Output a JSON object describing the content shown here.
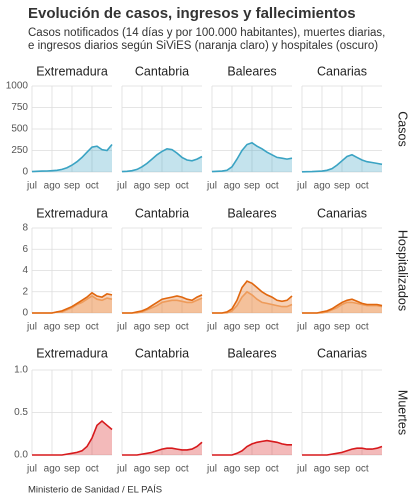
{
  "title": "Evolución de casos, ingresos y fallecimientos",
  "subtitle": [
    "Casos notificados (14 días y por 100.000 habitantes), muertes diarias,",
    "e ingresos diarios según SiViES (naranja claro) y hospitales (oscuro)"
  ],
  "source": "Ministerio de Sanidad / EL PAÍS",
  "chart_data": [
    {
      "type": "area",
      "row_label": "Casos",
      "ylim": [
        0,
        1000
      ],
      "yticks": [
        0,
        250,
        500,
        750,
        1000
      ],
      "grid": true,
      "categories": [
        "jul",
        null,
        null,
        null,
        "ago",
        null,
        null,
        null,
        "sep",
        null,
        null,
        null,
        "oct",
        null,
        null,
        null,
        null
      ],
      "panels": [
        {
          "title": "Extremadura",
          "series": [
            {
              "color": "#3aa3c3",
              "values": [
                5,
                8,
                10,
                12,
                15,
                20,
                30,
                50,
                80,
                120,
                170,
                230,
                290,
                300,
                260,
                250,
                320
              ]
            }
          ]
        },
        {
          "title": "Cantabria",
          "series": [
            {
              "color": "#3aa3c3",
              "values": [
                5,
                8,
                15,
                30,
                60,
                100,
                150,
                200,
                240,
                270,
                260,
                220,
                170,
                140,
                130,
                150,
                180
              ]
            }
          ]
        },
        {
          "title": "Baleares",
          "series": [
            {
              "color": "#3aa3c3",
              "values": [
                5,
                8,
                10,
                20,
                60,
                150,
                250,
                320,
                340,
                300,
                270,
                230,
                200,
                170,
                160,
                150,
                160
              ]
            }
          ]
        },
        {
          "title": "Canarias",
          "series": [
            {
              "color": "#3aa3c3",
              "values": [
                2,
                3,
                5,
                8,
                10,
                20,
                40,
                80,
                130,
                180,
                200,
                170,
                140,
                120,
                110,
                100,
                90
              ]
            }
          ]
        }
      ]
    },
    {
      "type": "area",
      "row_label": "Hospitalizados",
      "ylim": [
        0,
        8
      ],
      "yticks": [
        0,
        2,
        4,
        6,
        8
      ],
      "grid": true,
      "categories": [
        "jul",
        null,
        null,
        null,
        "ago",
        null,
        null,
        null,
        "sep",
        null,
        null,
        null,
        "oct",
        null,
        null,
        null,
        null
      ],
      "panels": [
        {
          "title": "Extremadura",
          "series": [
            {
              "color": "#f4b27a",
              "values": [
                0,
                0,
                0,
                0,
                0,
                0.1,
                0.1,
                0.3,
                0.5,
                0.8,
                1,
                1.3,
                1.6,
                1.3,
                1.2,
                1.4,
                1.3
              ]
            },
            {
              "color": "#e0670f",
              "values": [
                0,
                0,
                0,
                0,
                0,
                0.1,
                0.2,
                0.4,
                0.6,
                0.9,
                1.2,
                1.5,
                1.9,
                1.6,
                1.5,
                1.8,
                1.7
              ]
            }
          ]
        },
        {
          "title": "Cantabria",
          "series": [
            {
              "color": "#f4b27a",
              "values": [
                0,
                0,
                0,
                0,
                0.1,
                0.3,
                0.5,
                0.7,
                1,
                1.1,
                1.2,
                1.2,
                1.1,
                1,
                1,
                1.2,
                1.4
              ]
            },
            {
              "color": "#e0670f",
              "values": [
                0,
                0,
                0,
                0.1,
                0.2,
                0.4,
                0.7,
                1,
                1.3,
                1.4,
                1.5,
                1.6,
                1.5,
                1.3,
                1.2,
                1.5,
                1.7
              ]
            }
          ]
        },
        {
          "title": "Baleares",
          "series": [
            {
              "color": "#f4b27a",
              "values": [
                0,
                0,
                0,
                0,
                0.2,
                0.7,
                1.5,
                2,
                1.7,
                1.3,
                1,
                0.9,
                0.8,
                0.7,
                0.6,
                0.6,
                0.8
              ]
            },
            {
              "color": "#e0670f",
              "values": [
                0,
                0,
                0,
                0.1,
                0.4,
                1.2,
                2.4,
                3,
                2.8,
                2.4,
                2,
                1.7,
                1.5,
                1.2,
                1.1,
                1.2,
                1.6
              ]
            }
          ]
        },
        {
          "title": "Canarias",
          "series": [
            {
              "color": "#f4b27a",
              "values": [
                0,
                0,
                0,
                0,
                0,
                0.1,
                0.3,
                0.5,
                0.8,
                1,
                1,
                0.9,
                0.8,
                0.7,
                0.7,
                0.7,
                0.6
              ]
            },
            {
              "color": "#e0670f",
              "values": [
                0,
                0,
                0,
                0,
                0.1,
                0.2,
                0.4,
                0.7,
                1,
                1.2,
                1.3,
                1.1,
                0.9,
                0.8,
                0.8,
                0.8,
                0.7
              ]
            }
          ]
        }
      ]
    },
    {
      "type": "area",
      "row_label": "Muertes",
      "ylim": [
        0,
        1
      ],
      "yticks": [
        {
          "value": 0,
          "label": "0.0"
        },
        {
          "value": 0.5,
          "label": "0.5"
        },
        {
          "value": 1,
          "label": "1.0"
        }
      ],
      "grid": true,
      "categories": [
        "jul",
        null,
        null,
        null,
        "ago",
        null,
        null,
        null,
        "sep",
        null,
        null,
        null,
        "oct",
        null,
        null,
        null,
        null
      ],
      "panels": [
        {
          "title": "Extremadura",
          "series": [
            {
              "color": "#d7191c",
              "values": [
                0,
                0,
                0,
                0,
                0,
                0,
                0,
                0.01,
                0.02,
                0.03,
                0.05,
                0.1,
                0.2,
                0.35,
                0.4,
                0.35,
                0.3
              ]
            }
          ]
        },
        {
          "title": "Cantabria",
          "series": [
            {
              "color": "#d7191c",
              "values": [
                0,
                0,
                0,
                0,
                0.01,
                0.02,
                0.03,
                0.05,
                0.07,
                0.08,
                0.08,
                0.07,
                0.06,
                0.06,
                0.07,
                0.1,
                0.15
              ]
            }
          ]
        },
        {
          "title": "Baleares",
          "series": [
            {
              "color": "#d7191c",
              "values": [
                0,
                0,
                0,
                0,
                0,
                0.02,
                0.05,
                0.1,
                0.13,
                0.15,
                0.16,
                0.17,
                0.16,
                0.15,
                0.13,
                0.12,
                0.12
              ]
            }
          ]
        },
        {
          "title": "Canarias",
          "series": [
            {
              "color": "#d7191c",
              "values": [
                0,
                0,
                0,
                0,
                0,
                0,
                0.01,
                0.02,
                0.03,
                0.05,
                0.07,
                0.08,
                0.08,
                0.07,
                0.07,
                0.08,
                0.1
              ]
            }
          ]
        }
      ]
    }
  ]
}
